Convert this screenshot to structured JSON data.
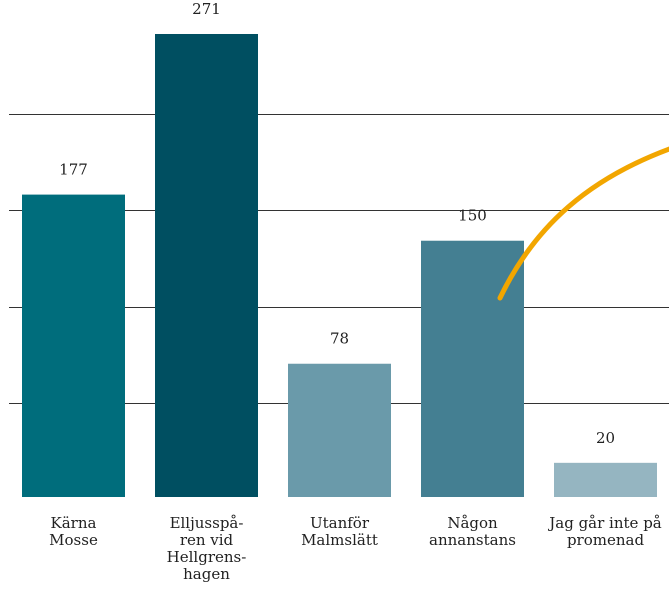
{
  "chart_data": {
    "type": "bar",
    "title": "",
    "xlabel": "",
    "ylabel": "",
    "ylim": [
      0,
      282
    ],
    "grid": true,
    "gridlines": [
      55,
      111,
      168,
      224
    ],
    "categories": [
      [
        "Kärna",
        "Mosse"
      ],
      [
        "Elljusspå-",
        "ren vid",
        "Hellgrens-",
        "hagen"
      ],
      [
        "Utanför",
        "Malmslätt"
      ],
      [
        "Någon",
        "annanstans"
      ],
      [
        "Jag går inte på",
        "promenad"
      ]
    ],
    "values": [
      177,
      271,
      78,
      150,
      20
    ],
    "data_labels": [
      "177",
      "271",
      "78",
      "150",
      "20"
    ],
    "colors": [
      "#006d7c",
      "#004f61",
      "#6a9aaa",
      "#447f92",
      "#95b5c1"
    ],
    "overlay_curve_color": "#f2a600"
  }
}
